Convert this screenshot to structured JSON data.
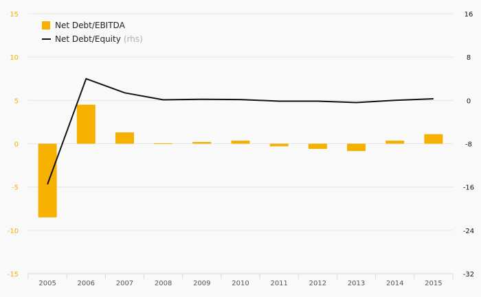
{
  "chart_data": {
    "type": "bar",
    "categories": [
      "2005",
      "2006",
      "2007",
      "2008",
      "2009",
      "2010",
      "2011",
      "2012",
      "2013",
      "2014",
      "2015"
    ],
    "series": [
      {
        "name": "Net Debt/EBITDA",
        "type": "bar",
        "axis": "left",
        "values": [
          -8.5,
          4.5,
          1.3,
          0.05,
          0.2,
          0.35,
          -0.3,
          -0.6,
          -0.85,
          0.35,
          1.1
        ],
        "color": "#f5b000"
      },
      {
        "name": "Net Debt/Equity",
        "type": "line",
        "axis": "right",
        "values": [
          -15.5,
          4.0,
          1.4,
          0.1,
          0.2,
          0.15,
          -0.15,
          -0.15,
          -0.4,
          0.0,
          0.3
        ],
        "color": "#111111"
      }
    ],
    "legend_suffix": "(rhs)",
    "y_left": {
      "ylim": [
        -15,
        15
      ],
      "ticks": [
        "15",
        "10",
        "5",
        "0",
        "-5",
        "-10",
        "-15"
      ],
      "tick_color": "#f5b000"
    },
    "y_right": {
      "ylim": [
        -32,
        16
      ],
      "ticks": [
        "16",
        "8",
        "0",
        "-8",
        "-16",
        "-24",
        "-32"
      ],
      "tick_color": "#111111"
    },
    "grid": true,
    "legend_position": "top-left"
  }
}
